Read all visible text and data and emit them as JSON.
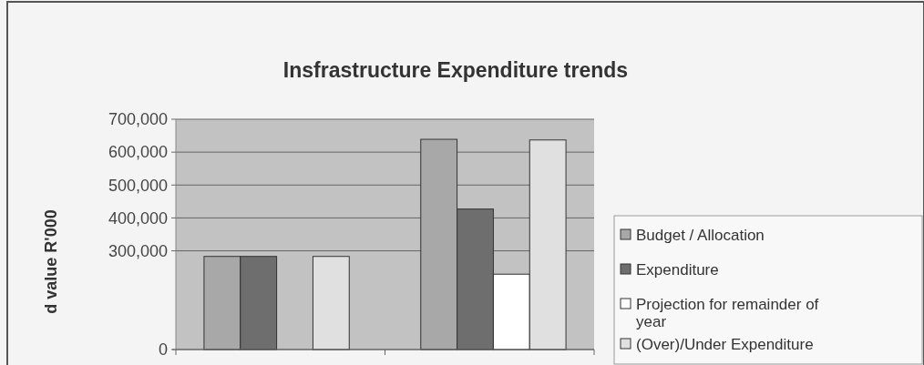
{
  "chart_data": {
    "type": "bar",
    "title": "Insfrastructure Expenditure trends",
    "ylabel": "d value R'000",
    "categories": [
      null,
      null
    ],
    "series": [
      {
        "name": "Budget / Allocation",
        "color": "#a8a8a8",
        "values": [
          283000,
          639000
        ]
      },
      {
        "name": "Expenditure",
        "color": "#6e6e6e",
        "values": [
          283000,
          427000
        ]
      },
      {
        "name": "Projection for remainder of year",
        "color": "#ffffff",
        "values": [
          null,
          229000
        ]
      },
      {
        "name": "(Over)/Under Expenditure",
        "color": "#e0e0e0",
        "values": [
          283000,
          637000
        ]
      }
    ],
    "ylim": [
      0,
      700000
    ],
    "yticks": [
      0,
      {
        "value": 300000,
        "label": "300,000"
      },
      {
        "value": 400000,
        "label": "400,000"
      },
      {
        "value": 500000,
        "label": "500,000"
      },
      {
        "value": 600000,
        "label": "600,000"
      },
      {
        "value": 700000,
        "label": "700,000"
      }
    ],
    "grid": "y",
    "legend": "right"
  }
}
